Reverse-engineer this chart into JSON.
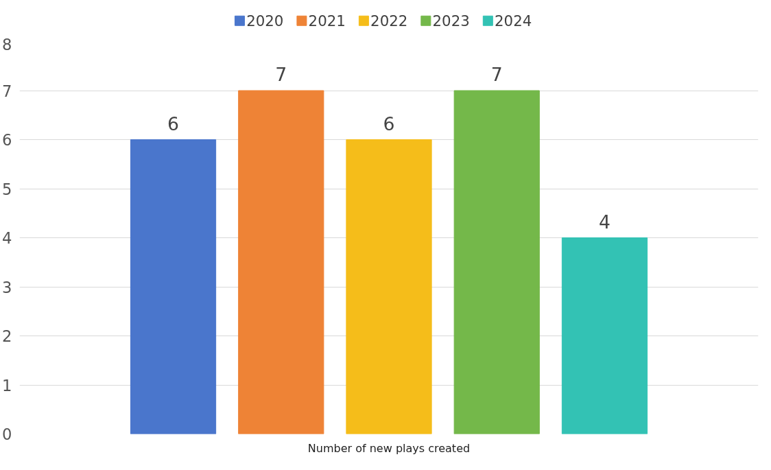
{
  "chart_data": {
    "type": "bar",
    "categories": [
      "Number of new plays created"
    ],
    "series": [
      {
        "name": "2020",
        "color": "#4a76cc",
        "values": [
          6
        ]
      },
      {
        "name": "2021",
        "color": "#ee8336",
        "values": [
          7
        ]
      },
      {
        "name": "2022",
        "color": "#f5bd1a",
        "values": [
          6
        ]
      },
      {
        "name": "2023",
        "color": "#74b84a",
        "values": [
          7
        ]
      },
      {
        "name": "2024",
        "color": "#33c2b4",
        "values": [
          4
        ]
      }
    ],
    "ylim": [
      0,
      8
    ],
    "yticks": [
      0,
      1,
      2,
      3,
      4,
      5,
      6,
      7,
      8
    ],
    "grid": "y",
    "legend": "top",
    "data_labels": true
  }
}
